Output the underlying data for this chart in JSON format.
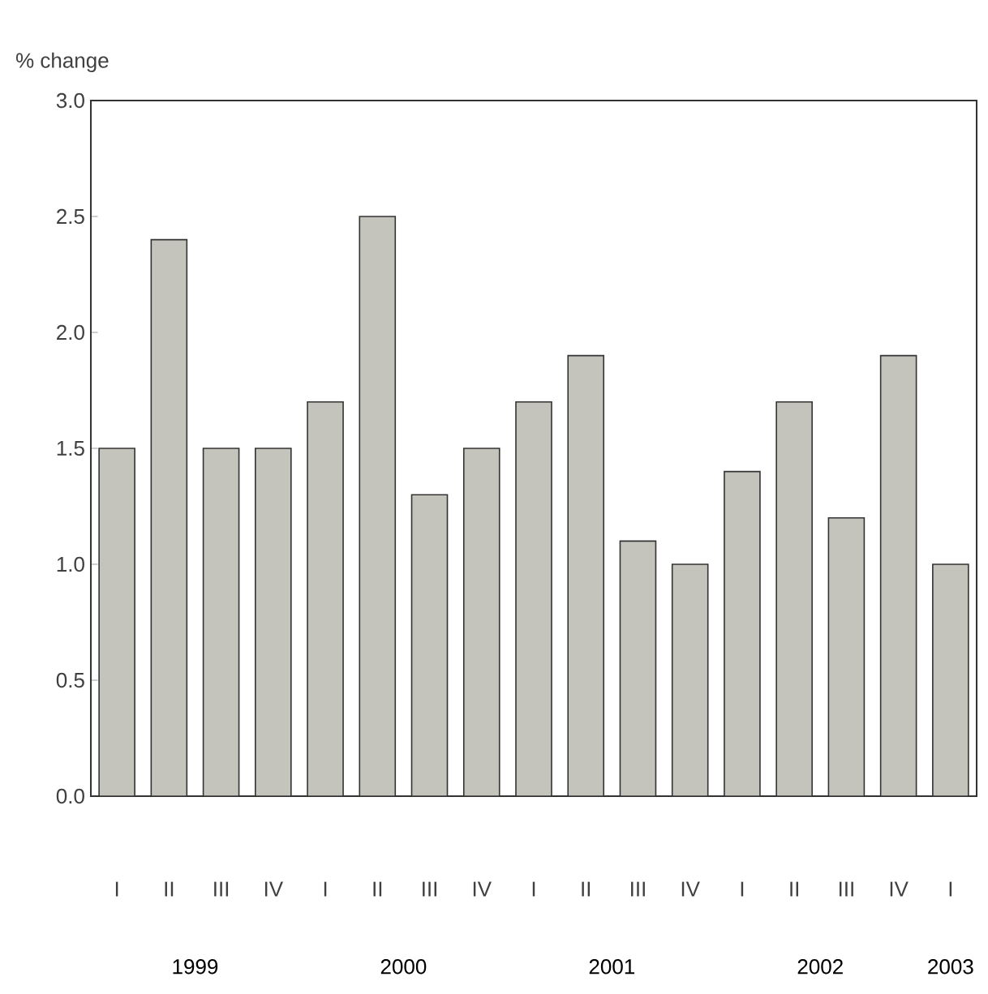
{
  "chart_data": {
    "type": "bar",
    "ylabel": "% change",
    "categories": [
      "I",
      "II",
      "III",
      "IV",
      "I",
      "II",
      "III",
      "IV",
      "I",
      "II",
      "III",
      "IV",
      "I",
      "II",
      "III",
      "IV",
      "I"
    ],
    "values": [
      1.5,
      2.4,
      1.5,
      1.5,
      1.7,
      2.5,
      1.3,
      1.5,
      1.7,
      1.9,
      1.1,
      1.0,
      1.4,
      1.7,
      1.2,
      1.9,
      1.0
    ],
    "color": "#c4c4bc",
    "ylim": [
      0,
      3
    ],
    "yticks": [
      {
        "value": 0,
        "label": "0.0"
      },
      {
        "value": 0.5,
        "label": "0.5"
      },
      {
        "value": 1,
        "label": "1.0"
      },
      {
        "value": 1.5,
        "label": "1.5"
      },
      {
        "value": 2,
        "label": "2.0"
      },
      {
        "value": 2.5,
        "label": "2.5"
      },
      {
        "value": 3,
        "label": "3.0"
      }
    ],
    "annotations": [
      "1999",
      "2000",
      "2001",
      "2002",
      "2003"
    ]
  }
}
